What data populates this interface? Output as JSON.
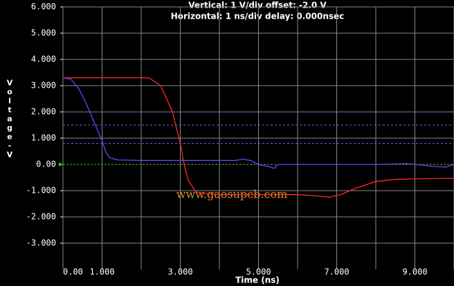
{
  "chart_data": {
    "type": "line",
    "title": "Vertical: 1  V/div  offset: -2.0 V",
    "subtitle": "Horizontal: 1 ns/div  delay: 0.000nsec",
    "x_label": "Time (ns)",
    "y_label": "Voltage-V",
    "watermark": "www.gaosupcb.com",
    "xlim": [
      0,
      10
    ],
    "ylim": [
      -4,
      6
    ],
    "xticks": [
      {
        "value": 0,
        "label": "0.00"
      },
      {
        "value": 1,
        "label": "1.000"
      },
      {
        "value": 3,
        "label": "3.000"
      },
      {
        "value": 5,
        "label": "5.000"
      },
      {
        "value": 7,
        "label": "7.000"
      },
      {
        "value": 9,
        "label": "9.000"
      }
    ],
    "xgrid": [
      0,
      1,
      2,
      3,
      4,
      5,
      6,
      7,
      8,
      9,
      10
    ],
    "yticks": [
      {
        "value": 6,
        "label": "6.000"
      },
      {
        "value": 5,
        "label": "5.000"
      },
      {
        "value": 4,
        "label": "4.000"
      },
      {
        "value": 3,
        "label": "3.000"
      },
      {
        "value": 2,
        "label": "2.000"
      },
      {
        "value": 1,
        "label": "1.000"
      },
      {
        "value": 0,
        "label": "0.00"
      },
      {
        "value": -1,
        "label": "-1.000"
      },
      {
        "value": -2,
        "label": "-2.000"
      },
      {
        "value": -3,
        "label": "-3.000"
      }
    ],
    "threshold_lines": [
      2.0,
      1.5,
      0.8
    ],
    "threshold_color": "#6a6aff",
    "zero_color": "#20d020",
    "grid": true,
    "series": [
      {
        "color": "#ff2a2a",
        "x": [
          0,
          2.2,
          2.5,
          2.8,
          3.0,
          3.1,
          3.2,
          3.4,
          3.6,
          4,
          5,
          6,
          6.5,
          6.8,
          7.1,
          7.5,
          8,
          8.5,
          9,
          10
        ],
        "values": [
          3.3,
          3.3,
          3.0,
          2.0,
          0.8,
          0,
          -0.6,
          -1.05,
          -1.1,
          -1.15,
          -1.15,
          -1.15,
          -1.2,
          -1.25,
          -1.15,
          -0.9,
          -0.65,
          -0.57,
          -0.55,
          -0.53
        ]
      },
      {
        "color": "#7a3cff",
        "x": [
          0,
          0.2,
          0.4,
          0.6,
          0.8,
          1.0,
          1.1,
          1.2,
          1.4,
          2,
          3,
          4,
          4.4,
          4.6,
          4.8,
          5,
          5.3,
          5.4,
          5.5,
          6,
          8,
          8.8,
          9,
          9.5,
          9.8,
          10
        ],
        "values": [
          3.3,
          3.25,
          2.9,
          2.3,
          1.6,
          0.9,
          0.45,
          0.25,
          0.17,
          0.15,
          0.15,
          0.15,
          0.15,
          0.2,
          0.15,
          0.0,
          -0.1,
          -0.15,
          0,
          0,
          0,
          0.03,
          0,
          -0.08,
          -0.1,
          0
        ]
      }
    ]
  }
}
